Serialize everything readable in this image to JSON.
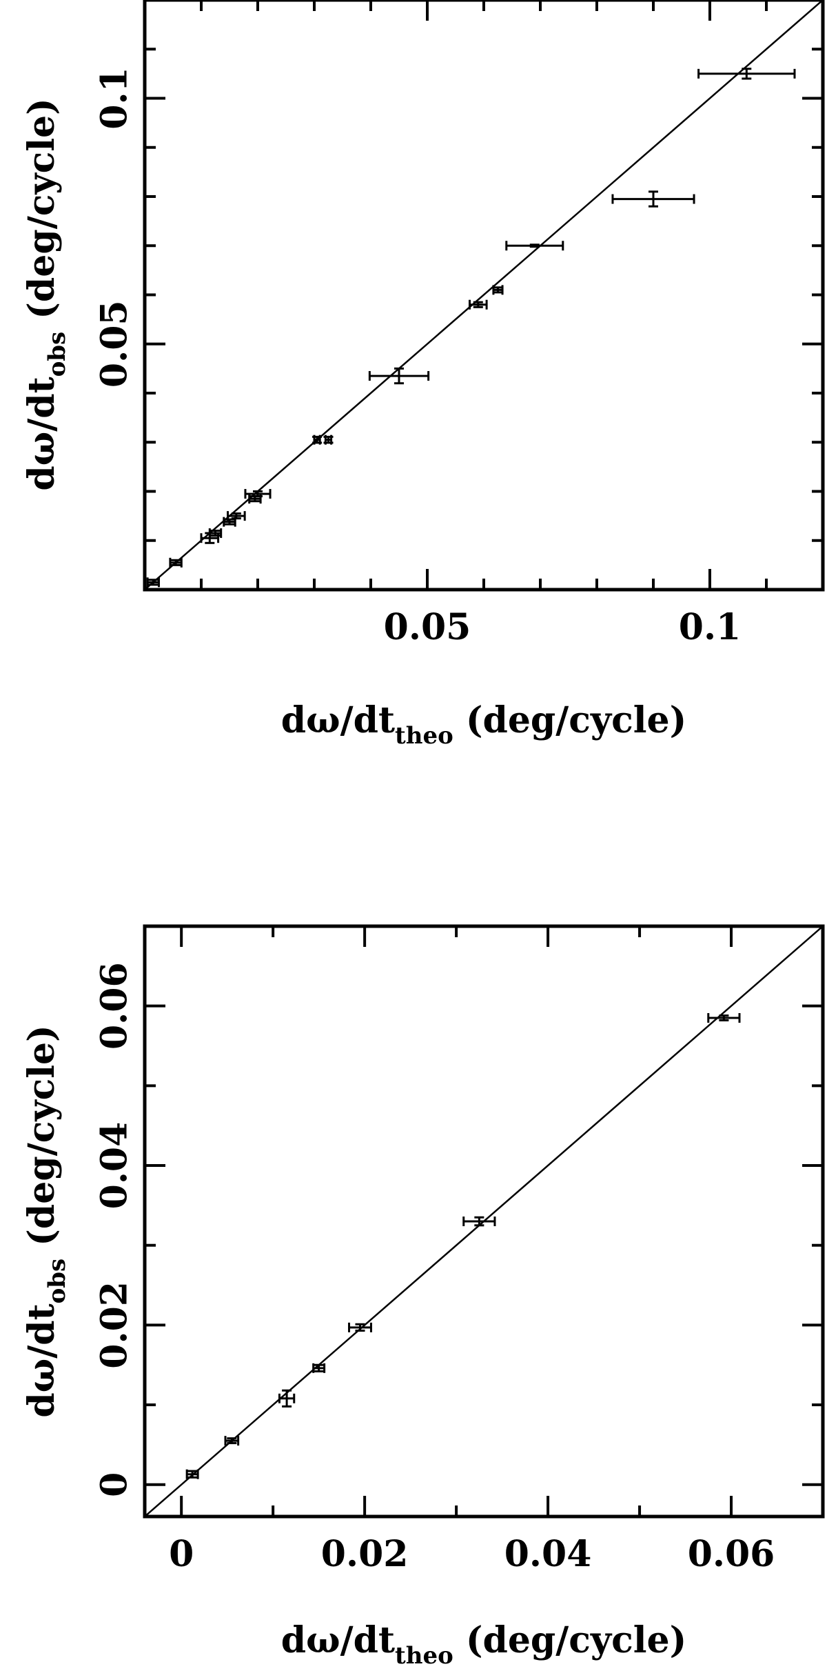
{
  "chart_data": [
    {
      "type": "scatter",
      "title": "",
      "xlabel": {
        "base": "dω/dt",
        "sub": "theo",
        "unit": " (deg/cycle)"
      },
      "ylabel": {
        "base": "dω/dt",
        "sub": "obs",
        "unit": " (deg/cycle)"
      },
      "xlim": [
        0.0,
        0.12
      ],
      "ylim": [
        0.0,
        0.12
      ],
      "xticks": {
        "major": [
          0.05,
          0.1
        ],
        "minor": [
          0.01,
          0.02,
          0.03,
          0.04,
          0.06,
          0.07,
          0.08,
          0.09,
          0.11
        ],
        "labels": [
          "0.05",
          "0.1"
        ]
      },
      "yticks": {
        "major": [
          0.05,
          0.1
        ],
        "minor": [
          0.01,
          0.02,
          0.03,
          0.04,
          0.06,
          0.07,
          0.08,
          0.09,
          0.11
        ],
        "labels": [
          "0.05",
          "0.1"
        ]
      },
      "grid": false,
      "reference_line": "y = x",
      "points": [
        {
          "x": 0.0015,
          "y": 0.0015,
          "xerr": 0.001,
          "yerr": 0.0005
        },
        {
          "x": 0.0055,
          "y": 0.0055,
          "xerr": 0.001,
          "yerr": 0.0005
        },
        {
          "x": 0.0115,
          "y": 0.0105,
          "xerr": 0.0015,
          "yerr": 0.001
        },
        {
          "x": 0.0125,
          "y": 0.0115,
          "xerr": 0.001,
          "yerr": 0.0005
        },
        {
          "x": 0.015,
          "y": 0.0138,
          "xerr": 0.001,
          "yerr": 0.0005
        },
        {
          "x": 0.0162,
          "y": 0.015,
          "xerr": 0.0015,
          "yerr": 0.0005
        },
        {
          "x": 0.0195,
          "y": 0.0185,
          "xerr": 0.001,
          "yerr": 0.0005
        },
        {
          "x": 0.02,
          "y": 0.0195,
          "xerr": 0.0022,
          "yerr": 0.0005
        },
        {
          "x": 0.0305,
          "y": 0.0305,
          "xerr": 0.0005,
          "yerr": 0.0006
        },
        {
          "x": 0.0325,
          "y": 0.0305,
          "xerr": 0.0005,
          "yerr": 0.0006
        },
        {
          "x": 0.045,
          "y": 0.0435,
          "xerr": 0.0052,
          "yerr": 0.0015
        },
        {
          "x": 0.059,
          "y": 0.058,
          "xerr": 0.0015,
          "yerr": 0.0005
        },
        {
          "x": 0.0625,
          "y": 0.061,
          "xerr": 0.0008,
          "yerr": 0.0005
        },
        {
          "x": 0.069,
          "y": 0.07,
          "xerr": 0.005,
          "yerr": 0.0002
        },
        {
          "x": 0.09,
          "y": 0.0795,
          "xerr": 0.0072,
          "yerr": 0.0015
        },
        {
          "x": 0.1065,
          "y": 0.105,
          "xerr": 0.0085,
          "yerr": 0.001
        }
      ]
    },
    {
      "type": "scatter",
      "title": "",
      "xlabel": {
        "base": "dω/dt",
        "sub": "theo",
        "unit": " (deg/cycle)"
      },
      "ylabel": {
        "base": "dω/dt",
        "sub": "obs",
        "unit": " (deg/cycle)"
      },
      "xlim": [
        -0.004,
        0.07
      ],
      "ylim": [
        -0.004,
        0.07
      ],
      "xticks": {
        "major": [
          0,
          0.02,
          0.04,
          0.06
        ],
        "minor": [
          0.01,
          0.03,
          0.05
        ],
        "labels": [
          "0",
          "0.02",
          "0.04",
          "0.06"
        ]
      },
      "yticks": {
        "major": [
          0,
          0.02,
          0.04,
          0.06
        ],
        "minor": [
          0.01,
          0.03,
          0.05
        ],
        "labels": [
          "0",
          "0.02",
          "0.04",
          "0.06"
        ]
      },
      "grid": false,
      "reference_line": "y = x",
      "points": [
        {
          "x": 0.0012,
          "y": 0.0013,
          "xerr": 0.0006,
          "yerr": 0.0004
        },
        {
          "x": 0.0055,
          "y": 0.0055,
          "xerr": 0.0007,
          "yerr": 0.0003
        },
        {
          "x": 0.0115,
          "y": 0.0108,
          "xerr": 0.0008,
          "yerr": 0.001
        },
        {
          "x": 0.015,
          "y": 0.0146,
          "xerr": 0.0006,
          "yerr": 0.0004
        },
        {
          "x": 0.0195,
          "y": 0.0197,
          "xerr": 0.0012,
          "yerr": 0.0004
        },
        {
          "x": 0.0325,
          "y": 0.033,
          "xerr": 0.0017,
          "yerr": 0.0005
        },
        {
          "x": 0.0592,
          "y": 0.0585,
          "xerr": 0.0017,
          "yerr": 0.0003
        }
      ]
    }
  ]
}
